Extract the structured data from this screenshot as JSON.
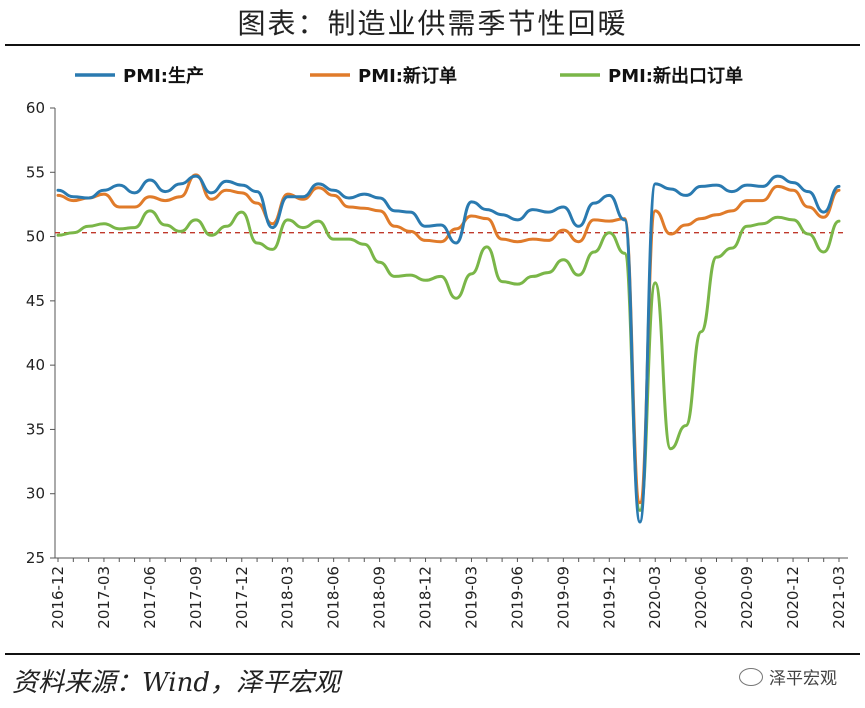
{
  "header": {
    "title": "图表：制造业供需季节性回暖"
  },
  "footer": {
    "source": "资料来源：Wind，泽平宏观",
    "brand": "泽平宏观"
  },
  "chart_data": {
    "type": "line",
    "title": "图表：制造业供需季节性回暖",
    "xlabel": "",
    "ylabel": "",
    "ylim": [
      25,
      60
    ],
    "yticks": [
      25,
      30,
      35,
      40,
      45,
      50,
      55,
      60
    ],
    "x_tick_labels": [
      "2016-12",
      "2017-03",
      "2017-06",
      "2017-09",
      "2017-12",
      "2018-03",
      "2018-06",
      "2018-09",
      "2018-12",
      "2019-03",
      "2019-06",
      "2019-09",
      "2019-12",
      "2020-03",
      "2020-06",
      "2020-09",
      "2020-12",
      "2021-03"
    ],
    "x": [
      "2016-12",
      "2017-01",
      "2017-02",
      "2017-03",
      "2017-04",
      "2017-05",
      "2017-06",
      "2017-07",
      "2017-08",
      "2017-09",
      "2017-10",
      "2017-11",
      "2017-12",
      "2018-01",
      "2018-02",
      "2018-03",
      "2018-04",
      "2018-05",
      "2018-06",
      "2018-07",
      "2018-08",
      "2018-09",
      "2018-10",
      "2018-11",
      "2018-12",
      "2019-01",
      "2019-02",
      "2019-03",
      "2019-04",
      "2019-05",
      "2019-06",
      "2019-07",
      "2019-08",
      "2019-09",
      "2019-10",
      "2019-11",
      "2019-12",
      "2020-01",
      "2020-02",
      "2020-03",
      "2020-04",
      "2020-05",
      "2020-06",
      "2020-07",
      "2020-08",
      "2020-09",
      "2020-10",
      "2020-11",
      "2020-12",
      "2021-01",
      "2021-02",
      "2021-03"
    ],
    "legend_position": "top",
    "reference_line": {
      "value": 50.3,
      "color": "#c0392b",
      "style": "dashed"
    },
    "series": [
      {
        "name": "PMI:生产",
        "color": "#2a7ab0",
        "values": [
          53.6,
          53.1,
          53.0,
          53.6,
          54.0,
          53.4,
          54.4,
          53.5,
          54.1,
          54.7,
          53.4,
          54.3,
          54.0,
          53.5,
          50.7,
          53.1,
          53.1,
          54.1,
          53.6,
          53.0,
          53.3,
          53.0,
          52.0,
          51.9,
          50.8,
          50.9,
          49.5,
          52.7,
          52.1,
          51.7,
          51.3,
          52.1,
          51.9,
          52.3,
          50.8,
          52.6,
          53.2,
          51.3,
          27.8,
          54.1,
          53.7,
          53.2,
          53.9,
          54.0,
          53.5,
          54.0,
          53.9,
          54.7,
          54.2,
          53.5,
          51.9,
          53.9
        ]
      },
      {
        "name": "PMI:新订单",
        "color": "#e07b2a",
        "values": [
          53.2,
          52.8,
          53.0,
          53.3,
          52.3,
          52.3,
          53.1,
          52.8,
          53.1,
          54.8,
          52.9,
          53.6,
          53.4,
          52.6,
          51.0,
          53.3,
          52.9,
          53.8,
          53.2,
          52.3,
          52.2,
          52.0,
          50.8,
          50.4,
          49.7,
          49.6,
          50.6,
          51.6,
          51.4,
          49.8,
          49.6,
          49.8,
          49.7,
          50.5,
          49.6,
          51.3,
          51.2,
          51.4,
          29.3,
          52.0,
          50.2,
          50.9,
          51.4,
          51.7,
          52.0,
          52.8,
          52.8,
          53.9,
          53.6,
          52.3,
          51.5,
          53.6
        ]
      },
      {
        "name": "PMI:新出口订单",
        "color": "#7ab648",
        "values": [
          50.1,
          50.3,
          50.8,
          51.0,
          50.6,
          50.7,
          52.0,
          50.9,
          50.4,
          51.3,
          50.1,
          50.8,
          51.9,
          49.5,
          49.0,
          51.3,
          50.7,
          51.2,
          49.8,
          49.8,
          49.4,
          48.0,
          46.9,
          47.0,
          46.6,
          46.9,
          45.2,
          47.1,
          49.2,
          46.5,
          46.3,
          46.9,
          47.2,
          48.2,
          47.0,
          48.8,
          50.3,
          48.7,
          28.7,
          46.4,
          33.5,
          35.3,
          42.6,
          48.4,
          49.1,
          50.8,
          51.0,
          51.5,
          51.3,
          50.2,
          48.8,
          51.2
        ]
      }
    ]
  }
}
